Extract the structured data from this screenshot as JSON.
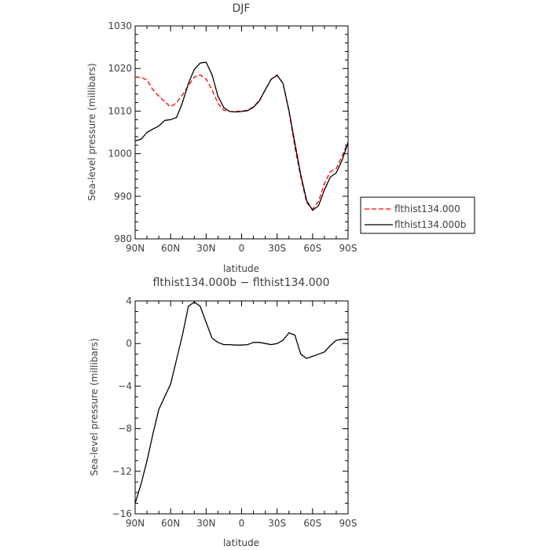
{
  "chart_data": [
    {
      "type": "line",
      "title": "DJF",
      "xlabel": "latitude",
      "ylabel": "Sea-level pressure (millibars)",
      "xlim": [
        90,
        -90
      ],
      "ylim": [
        980,
        1030
      ],
      "xtick_labels": [
        "90N",
        "60N",
        "30N",
        "0",
        "30S",
        "60S",
        "90S"
      ],
      "ytick_labels": [
        "980",
        "990",
        "1000",
        "1010",
        "1020",
        "1030"
      ],
      "legend_position": "outside-right",
      "series": [
        {
          "name": "flthist134.000",
          "color": "#ff0000",
          "dash": "dashed",
          "x": [
            90,
            85,
            80,
            75,
            70,
            65,
            60,
            55,
            50,
            45,
            40,
            35,
            30,
            25,
            20,
            15,
            10,
            5,
            0,
            -5,
            -10,
            -15,
            -20,
            -25,
            -30,
            -35,
            -40,
            -45,
            -50,
            -55,
            -60,
            -65,
            -70,
            -75,
            -80,
            -85,
            -90
          ],
          "y": [
            1018.0,
            1017.9,
            1017.3,
            1015.0,
            1013.5,
            1012.2,
            1011.0,
            1012.0,
            1013.8,
            1016.0,
            1018.0,
            1018.5,
            1017.5,
            1015.0,
            1011.8,
            1010.2,
            1009.9,
            1009.9,
            1010.0,
            1010.2,
            1011.0,
            1012.5,
            1015.0,
            1017.5,
            1018.5,
            1016.5,
            1010.0,
            1001.5,
            994.5,
            988.5,
            987.0,
            988.8,
            993.0,
            995.8,
            996.5,
            999.5,
            1002.8
          ]
        },
        {
          "name": "flthist134.000b",
          "color": "#000000",
          "dash": "solid",
          "x": [
            90,
            85,
            80,
            75,
            70,
            65,
            60,
            55,
            50,
            45,
            40,
            35,
            30,
            25,
            20,
            15,
            10,
            5,
            0,
            -5,
            -10,
            -15,
            -20,
            -25,
            -30,
            -35,
            -40,
            -45,
            -50,
            -55,
            -60,
            -65,
            -70,
            -75,
            -80,
            -85,
            -90
          ],
          "y": [
            1003.0,
            1003.4,
            1005.0,
            1005.8,
            1006.5,
            1007.8,
            1008.0,
            1008.5,
            1012.0,
            1016.5,
            1019.8,
            1021.3,
            1021.5,
            1018.5,
            1013.5,
            1010.8,
            1009.9,
            1009.8,
            1009.9,
            1010.1,
            1010.9,
            1012.4,
            1015.0,
            1017.5,
            1018.4,
            1016.5,
            1010.2,
            1002.5,
            995.0,
            989.0,
            986.7,
            987.8,
            991.5,
            994.5,
            995.5,
            998.5,
            1002.6
          ]
        }
      ]
    },
    {
      "type": "line",
      "title": "flthist134.000b − flthist134.000",
      "xlabel": "latitude",
      "ylabel": "Sea-level pressure (millibars)",
      "xlim": [
        90,
        -90
      ],
      "ylim": [
        -16,
        4
      ],
      "xtick_labels": [
        "90N",
        "60N",
        "30N",
        "0",
        "30S",
        "60S",
        "90S"
      ],
      "ytick_labels": [
        "−16",
        "−12",
        "−8",
        "−4",
        "0",
        "4"
      ],
      "series": [
        {
          "color": "#000000",
          "dash": "solid",
          "x": [
            90,
            85,
            80,
            75,
            70,
            65,
            60,
            55,
            50,
            45,
            40,
            35,
            30,
            25,
            20,
            15,
            10,
            5,
            0,
            -5,
            -10,
            -15,
            -20,
            -25,
            -30,
            -35,
            -40,
            -45,
            -50,
            -55,
            -60,
            -65,
            -70,
            -75,
            -80,
            -85,
            -90
          ],
          "y": [
            -15.0,
            -13.2,
            -11.0,
            -8.5,
            -6.2,
            -5.0,
            -3.8,
            -1.5,
            0.8,
            3.5,
            3.9,
            3.5,
            2.0,
            0.5,
            0.1,
            -0.1,
            -0.1,
            -0.15,
            -0.15,
            -0.1,
            0.1,
            0.1,
            0.0,
            -0.1,
            0.0,
            0.3,
            1.0,
            0.8,
            -1.0,
            -1.4,
            -1.2,
            -1.0,
            -0.8,
            -0.2,
            0.3,
            0.4,
            0.4
          ]
        }
      ]
    }
  ]
}
